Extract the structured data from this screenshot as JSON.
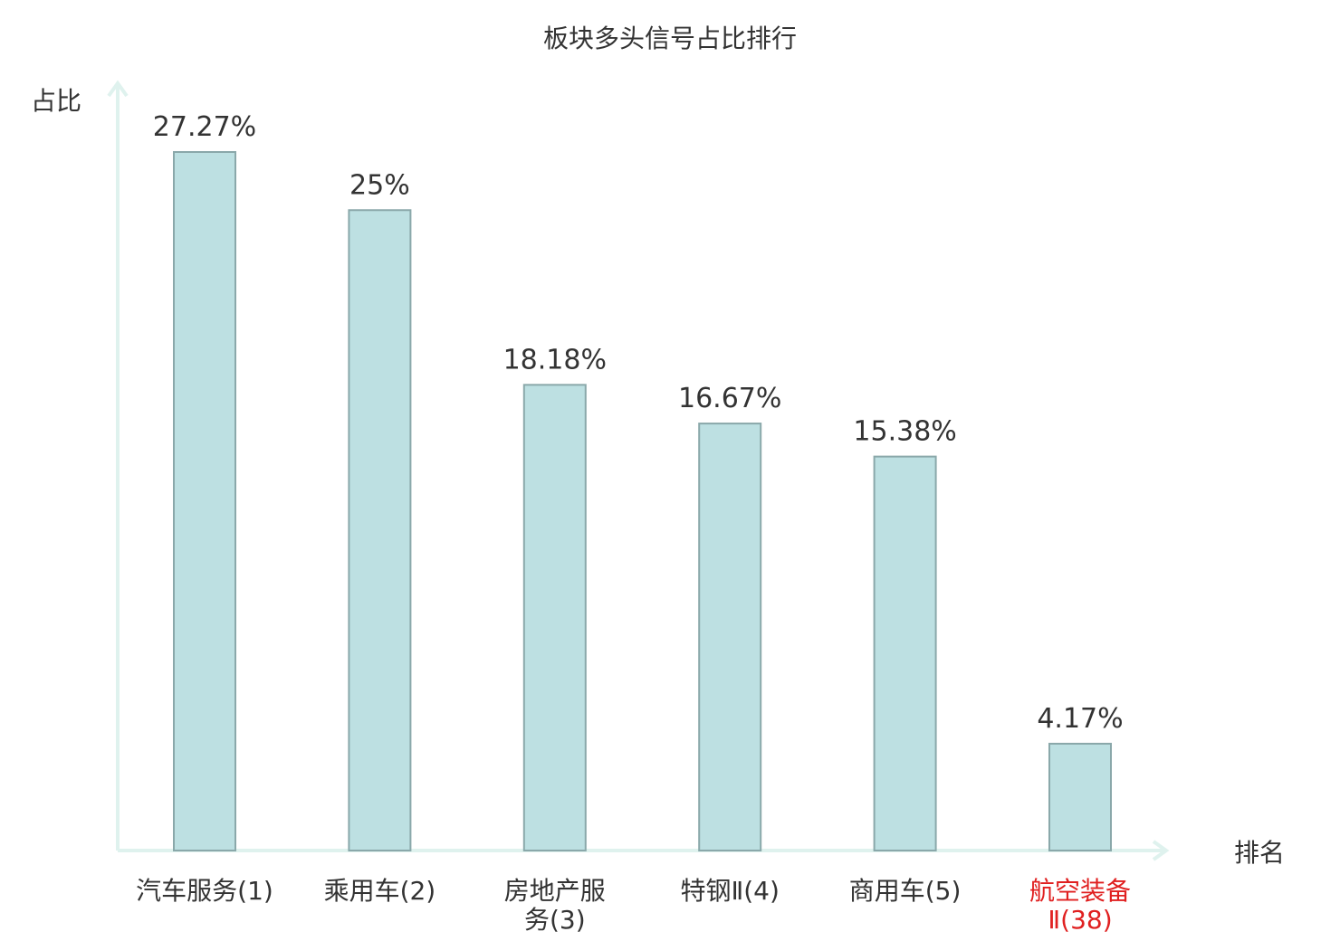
{
  "chart_data": {
    "type": "bar",
    "title": "板块多头信号占比排行",
    "xlabel": "排名",
    "ylabel": "占比",
    "categories": [
      [
        "汽车服务(1)"
      ],
      [
        "乘用车(2)"
      ],
      [
        "房地产服",
        "务(3)"
      ],
      [
        "特钢Ⅱ(4)"
      ],
      [
        "商用车(5)"
      ],
      [
        "航空装备",
        "Ⅱ(38)"
      ]
    ],
    "values": [
      27.27,
      25,
      18.18,
      16.67,
      15.38,
      4.17
    ],
    "value_labels": [
      "27.27%",
      "25%",
      "18.18%",
      "16.67%",
      "15.38%",
      "4.17%"
    ],
    "highlight_index": 5,
    "ylim": [
      0,
      27.27
    ],
    "grid": false,
    "colors": {
      "bar_fill": "#bde0e2",
      "bar_stroke": "#8aa8aa",
      "axis": "#dff2ee",
      "text": "#333333",
      "highlight_text": "#e02020"
    }
  }
}
